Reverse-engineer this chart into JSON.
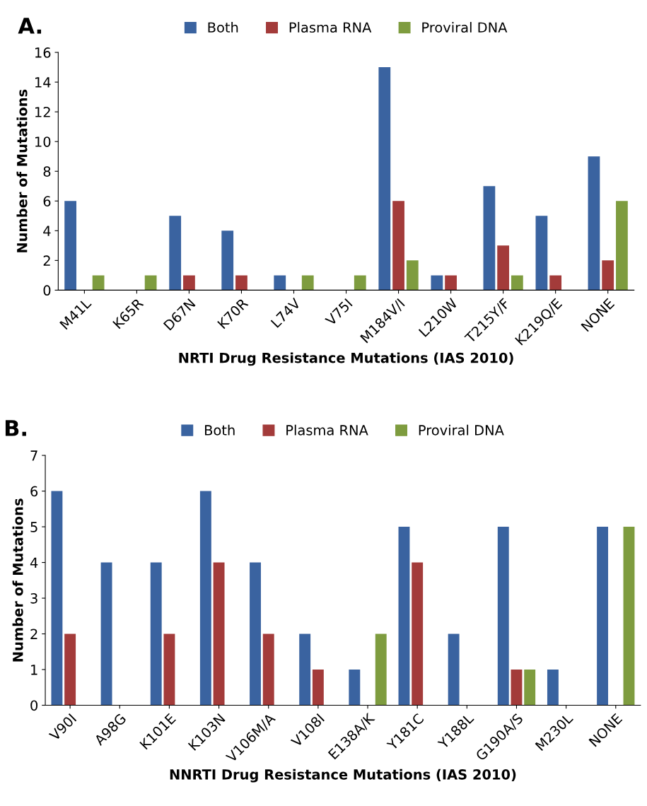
{
  "chart_data": [
    {
      "type": "bar",
      "title": "A.",
      "xlabel": "NRTI Drug Resistance Mutations (IAS 2010)",
      "ylabel": "Number of Mutations",
      "categories": [
        "M41L",
        "K65R",
        "D67N",
        "K70R",
        "L74V",
        "V75I",
        "M184V/I",
        "L210W",
        "T215Y/F",
        "K219Q/E",
        "NONE"
      ],
      "series": [
        {
          "name": "Both",
          "color": "#3a63a0",
          "values": [
            6,
            0,
            5,
            4,
            1,
            0,
            15,
            1,
            7,
            5,
            9
          ]
        },
        {
          "name": "Plasma RNA",
          "color": "#a33b3a",
          "values": [
            0,
            0,
            1,
            1,
            0,
            0,
            6,
            1,
            3,
            1,
            2
          ]
        },
        {
          "name": "Proviral DNA",
          "color": "#7e9c3f",
          "values": [
            1,
            1,
            0,
            0,
            1,
            1,
            2,
            0,
            1,
            0,
            6
          ]
        }
      ],
      "ylim": [
        0,
        16
      ],
      "yticks": [
        0,
        2,
        4,
        6,
        8,
        10,
        12,
        14,
        16
      ],
      "grid": false,
      "legend": "top"
    },
    {
      "type": "bar",
      "title": "B.",
      "xlabel": "NNRTI Drug Resistance Mutations (IAS 2010)",
      "ylabel": "Number of Mutations",
      "categories": [
        "V90I",
        "A98G",
        "K101E",
        "K103N",
        "V106M/A",
        "V108I",
        "E138A/K",
        "Y181C",
        "Y188L",
        "G190A/S",
        "M230L",
        "NONE"
      ],
      "series": [
        {
          "name": "Both",
          "color": "#3a63a0",
          "values": [
            6,
            4,
            4,
            6,
            4,
            2,
            1,
            5,
            2,
            5,
            1,
            5
          ]
        },
        {
          "name": "Plasma RNA",
          "color": "#a33b3a",
          "values": [
            2,
            0,
            2,
            4,
            2,
            1,
            0,
            4,
            0,
            1,
            0,
            0
          ]
        },
        {
          "name": "Proviral DNA",
          "color": "#7e9c3f",
          "values": [
            0,
            0,
            0,
            0,
            0,
            0,
            2,
            0,
            0,
            1,
            0,
            5
          ]
        }
      ],
      "ylim": [
        0,
        7
      ],
      "yticks": [
        0,
        1,
        2,
        3,
        4,
        5,
        6,
        7
      ],
      "grid": false,
      "legend": "top"
    }
  ]
}
